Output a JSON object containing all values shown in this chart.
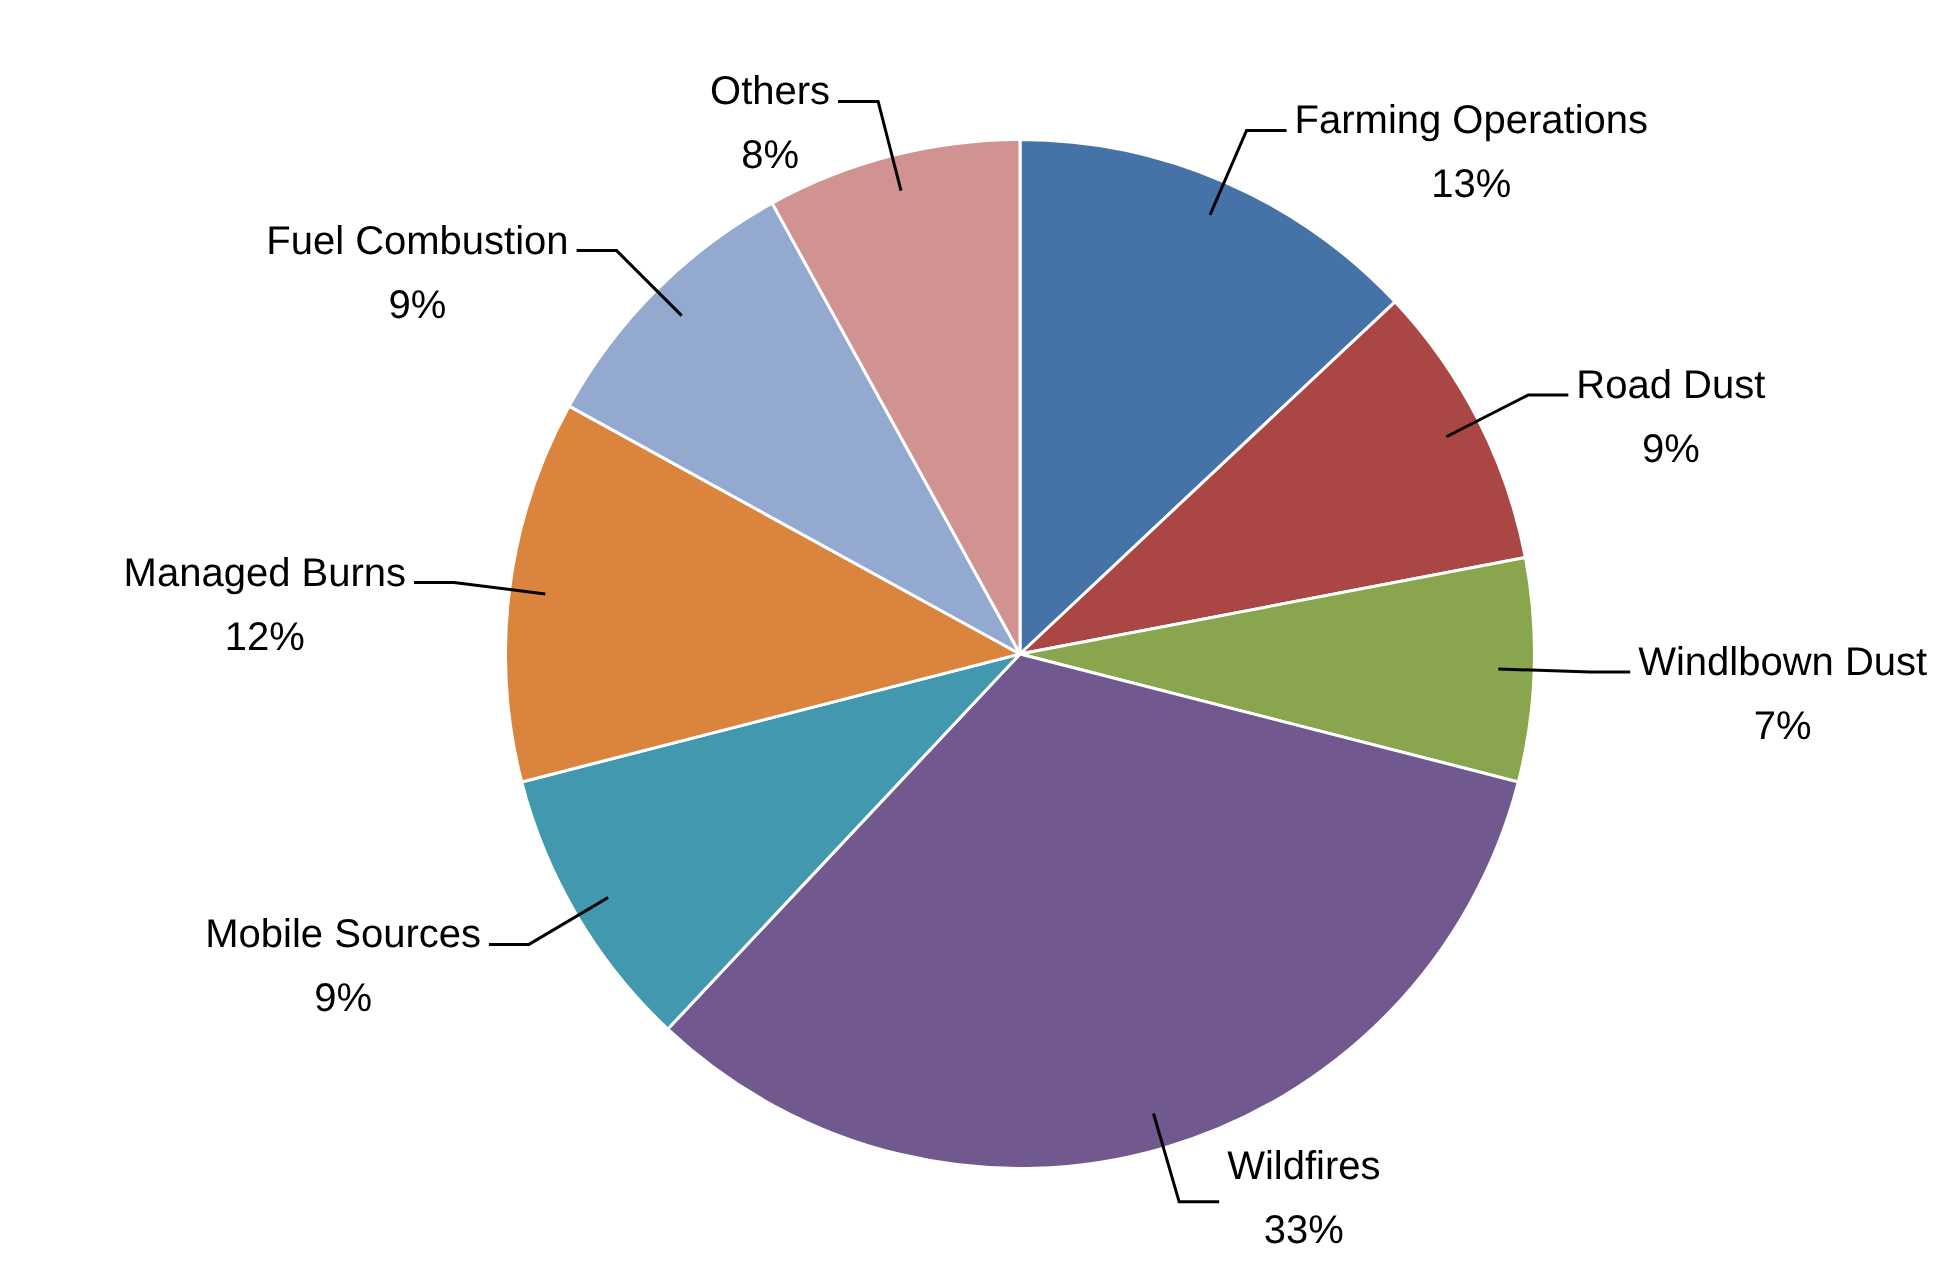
{
  "chart_data": {
    "type": "pie",
    "categories": [
      "Farming Operations",
      "Road Dust",
      "Windlbown Dust",
      "Wildfires",
      "Mobile Sources",
      "Managed Burns",
      "Fuel Combustion",
      "Others"
    ],
    "values": [
      13,
      9,
      7,
      33,
      9,
      12,
      9,
      8
    ],
    "value_labels": [
      "13%",
      "9%",
      "7%",
      "33%",
      "9%",
      "12%",
      "9%",
      "8%"
    ],
    "colors": [
      "#4572a7",
      "#aa4643",
      "#89a54e",
      "#71588f",
      "#4198af",
      "#db843d",
      "#93a9cf",
      "#d19392"
    ],
    "legend": false
  }
}
